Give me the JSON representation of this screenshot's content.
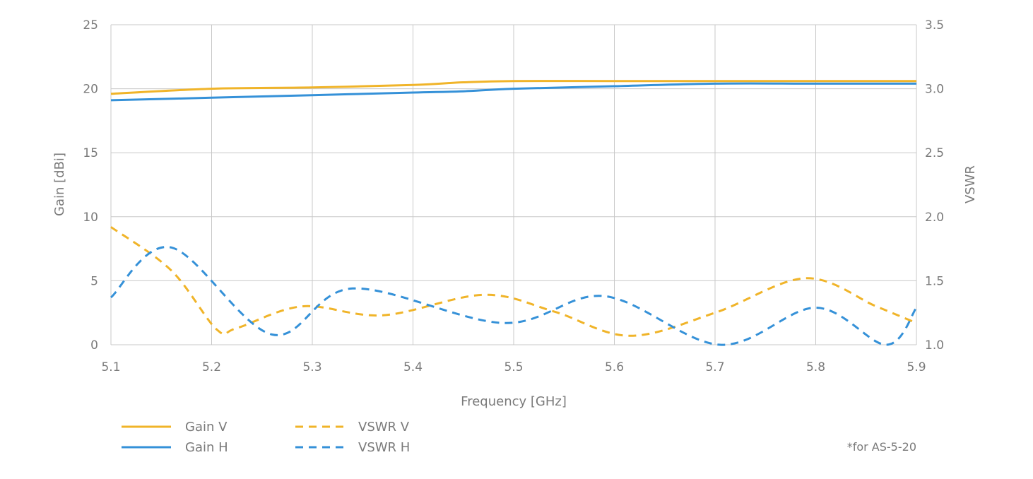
{
  "chart_data": {
    "type": "line",
    "xlabel": "Frequency [GHz]",
    "ylabel": "Gain [dBi]",
    "y2label": "VSWR",
    "xlim": [
      5.1,
      5.9
    ],
    "ylim": [
      0,
      25
    ],
    "y2lim": [
      1.0,
      3.5
    ],
    "x_ticks": [
      "5.1",
      "5.2",
      "5.3",
      "5.4",
      "5.5",
      "5.6",
      "5.7",
      "5.8",
      "5.9"
    ],
    "y_ticks": [
      "0",
      "5",
      "10",
      "15",
      "20",
      "25"
    ],
    "y2_ticks": [
      "1.0",
      "1.5",
      "2.0",
      "2.5",
      "3.0",
      "3.5"
    ],
    "grid": true,
    "legend_position": "bottom-left",
    "note": "*for AS-5-20",
    "colors": {
      "gain_v": "#f0b429",
      "gain_h": "#3591d8",
      "grid": "#c8c8c8",
      "text": "#7a7a7a"
    },
    "series": [
      {
        "name": "Gain V",
        "axis": "left",
        "style": "solid",
        "color": "#f0b429",
        "x": [
          5.1,
          5.2,
          5.3,
          5.4,
          5.45,
          5.5,
          5.6,
          5.7,
          5.8,
          5.9
        ],
        "y": [
          19.6,
          20.0,
          20.1,
          20.3,
          20.5,
          20.6,
          20.6,
          20.6,
          20.6,
          20.6
        ]
      },
      {
        "name": "Gain H",
        "axis": "left",
        "style": "solid",
        "color": "#3591d8",
        "x": [
          5.1,
          5.2,
          5.3,
          5.4,
          5.45,
          5.5,
          5.6,
          5.7,
          5.8,
          5.9
        ],
        "y": [
          19.1,
          19.3,
          19.5,
          19.7,
          19.8,
          20.0,
          20.2,
          20.4,
          20.4,
          20.4
        ]
      },
      {
        "name": "VSWR V",
        "axis": "right",
        "style": "dashed",
        "color": "#f0b429",
        "x": [
          5.1,
          5.16,
          5.205,
          5.225,
          5.29,
          5.37,
          5.47,
          5.54,
          5.615,
          5.7,
          5.79,
          5.86,
          5.9
        ],
        "y": [
          1.92,
          1.58,
          1.12,
          1.13,
          1.3,
          1.23,
          1.39,
          1.26,
          1.07,
          1.25,
          1.52,
          1.3,
          1.17
        ]
      },
      {
        "name": "VSWR H",
        "axis": "right",
        "style": "dashed",
        "color": "#3591d8",
        "x": [
          5.1,
          5.16,
          5.26,
          5.34,
          5.49,
          5.59,
          5.705,
          5.8,
          5.87,
          5.9
        ],
        "y": [
          1.37,
          1.76,
          1.08,
          1.44,
          1.17,
          1.38,
          1.0,
          1.29,
          1.0,
          1.29
        ]
      }
    ]
  }
}
